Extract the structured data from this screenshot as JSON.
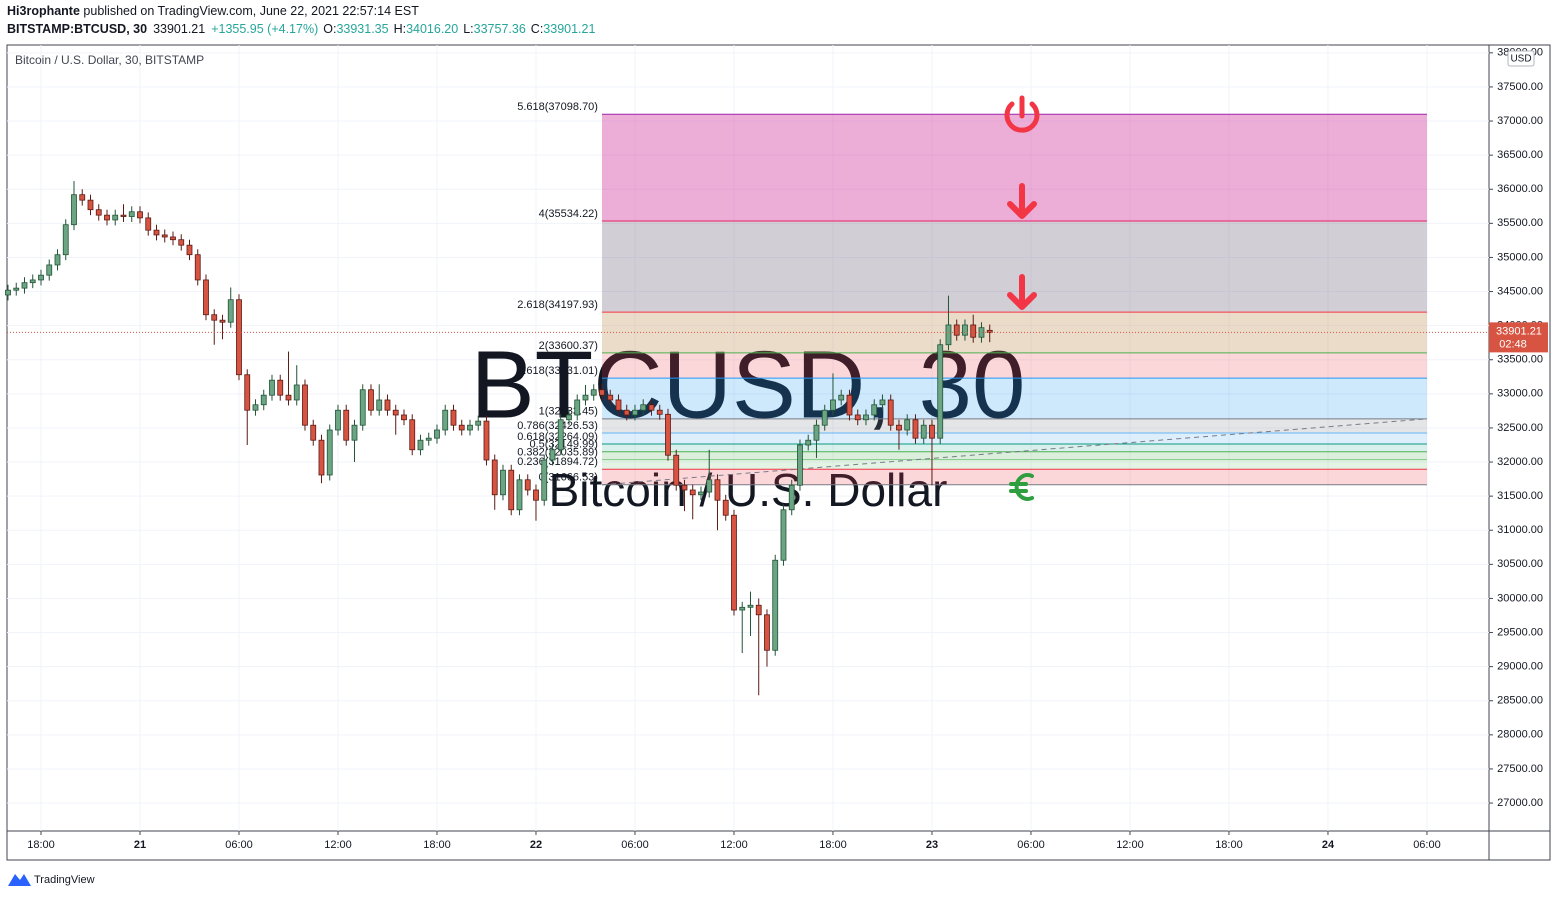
{
  "header": {
    "author": "Hi3rophante",
    "published": "published on TradingView.com, June 22, 2021 22:57:14 EST",
    "symbol": "BITSTAMP:BTCUSD, 30",
    "last": "33901.21",
    "change": "+1355.95 (+4.17%)",
    "ohlc": [
      {
        "label": "O:",
        "value": "33931.35"
      },
      {
        "label": "H:",
        "value": "34016.20"
      },
      {
        "label": "L:",
        "value": "33757.36"
      },
      {
        "label": "C:",
        "value": "33901.21"
      }
    ]
  },
  "chart_data": {
    "type": "candlestick",
    "legend": "Bitcoin / U.S. Dollar, 30, BITSTAMP",
    "watermark": [
      "BTCUSD, 30",
      "Bitcoin / U.S. Dollar"
    ],
    "currency": "USD",
    "countdown": "02:48",
    "up_color": "#6ba583",
    "up_border": "#225437",
    "down_color": "#d75442",
    "down_border": "#5b1a13",
    "x": [
      -8,
      -7.5,
      -7,
      -6.5,
      -6,
      -5.5,
      -5,
      -4.5,
      -4,
      -3.5,
      -3,
      -2.5,
      -2,
      -1.5,
      -1,
      -0.5,
      0,
      0.5,
      1,
      1.5,
      2,
      2.5,
      3,
      3.5,
      4,
      4.5,
      5,
      5.5,
      6,
      6.5,
      7,
      7.5,
      8,
      8.5,
      9,
      9.5,
      10,
      10.5,
      11,
      11.5,
      12,
      12.5,
      13,
      13.5,
      14,
      14.5,
      15,
      15.5,
      16,
      16.5,
      17,
      17.5,
      18,
      18.5,
      19,
      19.5,
      20,
      20.5,
      21,
      21.5,
      22,
      22.5,
      23,
      23.5,
      24,
      24.5,
      25,
      25.5,
      26,
      26.5,
      27,
      27.5,
      28,
      28.5,
      29,
      29.5,
      30,
      30.5,
      31,
      31.5,
      32,
      32.5,
      33,
      33.5,
      34,
      34.5,
      35,
      35.5,
      36,
      36.5,
      37,
      37.5,
      38,
      38.5,
      39,
      39.5,
      40,
      40.5,
      41,
      41.5,
      42,
      42.5,
      43,
      43.5,
      44,
      44.5,
      45,
      45.5,
      46,
      46.5,
      47,
      47.5,
      48,
      48.5,
      49,
      49.5,
      50,
      50.5,
      51,
      51.5
    ],
    "open": [
      34450,
      34520,
      34550,
      34630,
      34670,
      34740,
      34890,
      35040,
      35480,
      35920,
      35840,
      35700,
      35620,
      35550,
      35620,
      35600,
      35670,
      35580,
      35400,
      35330,
      35300,
      35260,
      35180,
      35040,
      34670,
      34160,
      34080,
      34050,
      34380,
      33280,
      32760,
      32840,
      32980,
      33200,
      32980,
      32910,
      33130,
      32540,
      32320,
      31810,
      32470,
      32760,
      32320,
      32540,
      33060,
      32760,
      32910,
      32760,
      32690,
      32620,
      32180,
      32320,
      32350,
      32470,
      32760,
      32540,
      32470,
      32540,
      32600,
      32030,
      31520,
      31880,
      31300,
      31740,
      31590,
      31440,
      32030,
      32180,
      32620,
      32690,
      32910,
      32980,
      33060,
      32980,
      32910,
      32760,
      32690,
      32760,
      32840,
      32760,
      32700,
      32100,
      31660,
      31590,
      31520,
      31560,
      31740,
      31440,
      31220,
      29830,
      29870,
      29900,
      29760,
      29240,
      30560,
      31300,
      31660,
      32250,
      32320,
      32540,
      32760,
      32910,
      32980,
      32690,
      32620,
      32690,
      32840,
      32910,
      32540,
      32470,
      32620,
      32350,
      32540,
      32350,
      33720,
      34010,
      33860,
      34010,
      33830,
      33931.35
    ],
    "high": [
      34600,
      34630,
      34710,
      34750,
      34820,
      34970,
      35120,
      35560,
      36120,
      36000,
      35920,
      35780,
      35700,
      35700,
      35780,
      35750,
      35750,
      35660,
      35480,
      35410,
      35380,
      35340,
      35260,
      35120,
      34750,
      34240,
      34160,
      34560,
      34460,
      33360,
      32920,
      33060,
      33280,
      33280,
      33620,
      33420,
      33210,
      32620,
      32400,
      32550,
      32840,
      32840,
      32620,
      33140,
      33140,
      33140,
      32990,
      32840,
      32770,
      32700,
      32400,
      32430,
      32550,
      32840,
      32840,
      32620,
      32620,
      32680,
      32680,
      32110,
      31960,
      31960,
      31820,
      31820,
      31670,
      32110,
      32260,
      32700,
      32770,
      32990,
      33130,
      33140,
      33140,
      33060,
      32990,
      32840,
      32840,
      32920,
      32920,
      32840,
      32780,
      32180,
      31740,
      31670,
      31640,
      32180,
      31820,
      31520,
      31300,
      29950,
      30100,
      30000,
      29840,
      30640,
      31380,
      31740,
      32330,
      32400,
      32620,
      32840,
      33300,
      33060,
      33060,
      32770,
      32770,
      32920,
      32990,
      32990,
      32620,
      32700,
      32700,
      32620,
      32620,
      33800,
      34440,
      34090,
      34090,
      34160,
      34050,
      34016.2
    ],
    "low": [
      34370,
      34440,
      34470,
      34550,
      34590,
      34660,
      34810,
      34960,
      35400,
      35760,
      35620,
      35540,
      35470,
      35470,
      35520,
      35520,
      35500,
      35320,
      35250,
      35220,
      35180,
      35100,
      34960,
      34590,
      34080,
      33720,
      33800,
      33970,
      33200,
      32250,
      32680,
      32760,
      32900,
      32900,
      32830,
      32830,
      32460,
      32240,
      31690,
      31730,
      32390,
      32240,
      32000,
      32460,
      32680,
      32680,
      32680,
      32400,
      32540,
      32100,
      32100,
      32240,
      32270,
      32390,
      32460,
      32390,
      32390,
      32460,
      31950,
      31300,
      31440,
      31220,
      31220,
      31510,
      31140,
      31360,
      31950,
      32100,
      32540,
      32610,
      32830,
      32900,
      32900,
      32830,
      32680,
      32610,
      32610,
      32680,
      32680,
      32620,
      32020,
      31580,
      31280,
      31160,
      31440,
      31480,
      31000,
      31140,
      29750,
      29200,
      29450,
      28580,
      29000,
      29160,
      30480,
      31220,
      31580,
      32170,
      32060,
      32460,
      32680,
      32830,
      32610,
      32540,
      32540,
      32610,
      32760,
      32460,
      32180,
      32390,
      32270,
      32270,
      31660,
      32270,
      33640,
      33780,
      33780,
      33750,
      33750,
      33757.36
    ],
    "close": [
      34520,
      34550,
      34630,
      34670,
      34740,
      34890,
      35040,
      35480,
      35920,
      35840,
      35700,
      35620,
      35550,
      35620,
      35600,
      35670,
      35580,
      35400,
      35330,
      35300,
      35260,
      35180,
      35040,
      34670,
      34160,
      34080,
      34050,
      34380,
      33280,
      32760,
      32840,
      32980,
      33200,
      32980,
      32910,
      33130,
      32540,
      32320,
      31810,
      32470,
      32760,
      32320,
      32540,
      33060,
      32760,
      32910,
      32760,
      32690,
      32620,
      32180,
      32320,
      32350,
      32470,
      32760,
      32540,
      32470,
      32540,
      32600,
      32030,
      31520,
      31880,
      31300,
      31740,
      31590,
      31440,
      32030,
      32180,
      32620,
      32690,
      32910,
      32980,
      33060,
      32980,
      32910,
      32760,
      32690,
      32760,
      32840,
      32760,
      32700,
      32100,
      31660,
      31590,
      31520,
      31560,
      31740,
      31440,
      31220,
      29830,
      29870,
      29900,
      29760,
      29240,
      30560,
      31300,
      31660,
      32250,
      32320,
      32540,
      32760,
      32910,
      32980,
      32690,
      32620,
      32690,
      32840,
      32910,
      32540,
      32470,
      32620,
      32350,
      32540,
      32350,
      33720,
      34010,
      33860,
      34010,
      33830,
      33970,
      33901.21
    ],
    "xlim": [
      -8.06,
      81.76
    ],
    "xticks": [
      {
        "value": -6,
        "label": "18:00"
      },
      {
        "value": 0,
        "label": "21"
      },
      {
        "value": 6,
        "label": "06:00"
      },
      {
        "value": 12,
        "label": "12:00"
      },
      {
        "value": 18,
        "label": "18:00"
      },
      {
        "value": 24,
        "label": "22"
      },
      {
        "value": 30,
        "label": "06:00"
      },
      {
        "value": 36,
        "label": "12:00"
      },
      {
        "value": 42,
        "label": "18:00"
      },
      {
        "value": 48,
        "label": "23"
      },
      {
        "value": 54,
        "label": "06:00"
      },
      {
        "value": 60,
        "label": "12:00"
      },
      {
        "value": 66,
        "label": "18:00"
      },
      {
        "value": 72,
        "label": "24"
      },
      {
        "value": 78,
        "label": "06:00"
      }
    ],
    "ylim": [
      26590,
      38115
    ],
    "yticks": [
      {
        "value": 27000,
        "label": "27000.00"
      },
      {
        "value": 27500,
        "label": "27500.00"
      },
      {
        "value": 28000,
        "label": "28000.00"
      },
      {
        "value": 28500,
        "label": "28500.00"
      },
      {
        "value": 29000,
        "label": "29000.00"
      },
      {
        "value": 29500,
        "label": "29500.00"
      },
      {
        "value": 30000,
        "label": "30000.00"
      },
      {
        "value": 30500,
        "label": "30500.00"
      },
      {
        "value": 31000,
        "label": "31000.00"
      },
      {
        "value": 31500,
        "label": "31500.00"
      },
      {
        "value": 32000,
        "label": "32000.00"
      },
      {
        "value": 32500,
        "label": "32500.00"
      },
      {
        "value": 33000,
        "label": "33000.00"
      },
      {
        "value": 33500,
        "label": "33500.00"
      },
      {
        "value": 34000,
        "label": "34000.00"
      },
      {
        "value": 34500,
        "label": "34500.00"
      },
      {
        "value": 35000,
        "label": "35000.00"
      },
      {
        "value": 35500,
        "label": "35500.00"
      },
      {
        "value": 36000,
        "label": "36000.00"
      },
      {
        "value": 36500,
        "label": "36500.00"
      },
      {
        "value": 37000,
        "label": "37000.00"
      },
      {
        "value": 37500,
        "label": "37500.00"
      },
      {
        "value": 38000,
        "label": "38000.00"
      }
    ],
    "grid": true,
    "fib": {
      "x_start": 28,
      "x_end": 78,
      "levels": [
        {
          "price": 31666.53,
          "label": "0(31666.53)",
          "color": "#787b86"
        },
        {
          "price": 31894.72,
          "label": "0.236(31894.72)",
          "color": "#f23645"
        },
        {
          "price": 32035.89,
          "label": "0.382(32035.89)",
          "color": "#81c784"
        },
        {
          "price": 32149.99,
          "label": "0.5(32149.99)",
          "color": "#4caf50"
        },
        {
          "price": 32264.09,
          "label": "0.618(32264.09)",
          "color": "#089981"
        },
        {
          "price": 32426.53,
          "label": "0.786(32426.53)",
          "color": "#64b5f6"
        },
        {
          "price": 32633.45,
          "label": "1(32633.45)",
          "color": "#787b86"
        },
        {
          "price": 33231.01,
          "label": "1.618(33231.01)",
          "color": "#2196f3"
        },
        {
          "price": 33600.37,
          "label": "2(33600.37)",
          "color": "#4caf50"
        },
        {
          "price": 34197.93,
          "label": "2.618(34197.93)",
          "color": "#f23645"
        },
        {
          "price": 35534.22,
          "label": "4(35534.22)",
          "color": "#e91e63"
        },
        {
          "price": 37098.7,
          "label": "5.618(37098.70)",
          "color": "#9c27b0"
        }
      ],
      "fills": [
        "rgba(242,54,69,0.2)",
        "rgba(129,199,132,0.22)",
        "rgba(76,175,80,0.2)",
        "rgba(8,153,129,0.15)",
        "rgba(100,181,246,0.22)",
        "rgba(120,123,134,0.2)",
        "rgba(33,150,243,0.22)",
        "rgba(242,54,69,0.2)",
        "rgba(190,140,80,0.3)",
        "rgba(125,115,135,0.35)",
        "rgba(210,60,160,0.42)"
      ]
    }
  },
  "footer": {
    "brand": "TradingView"
  }
}
